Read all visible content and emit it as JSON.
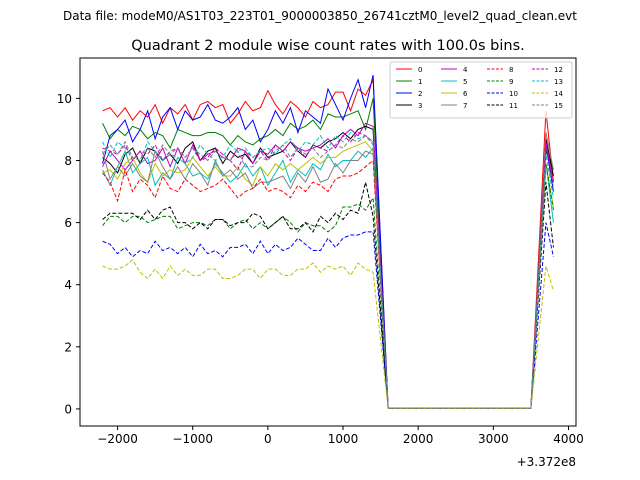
{
  "chart_data": {
    "type": "line",
    "suptitle": "Data file: modeM0/AS1T03_223T01_9000003850_26741cztM0_level2_quad_clean.evt",
    "title": "Quadrant 2 module wise count rates with 100.0s bins.",
    "xlabel": "",
    "ylabel": "",
    "x_offset_label": "+3.372e8",
    "xlim": [
      -2500,
      4100
    ],
    "ylim": [
      -0.55,
      11.3
    ],
    "xticks": [
      -2000,
      -1000,
      0,
      1000,
      2000,
      3000,
      4000
    ],
    "xtick_labels": [
      "−2000",
      "−1000",
      "0",
      "1000",
      "2000",
      "3000",
      "4000"
    ],
    "yticks": [
      0,
      2,
      4,
      6,
      8,
      10
    ],
    "ytick_labels": [
      "0",
      "2",
      "4",
      "6",
      "8",
      "10"
    ],
    "legend_position": "top-right",
    "legend_columns": 4,
    "grid": false,
    "x": [
      -2200,
      -2100,
      -2000,
      -1900,
      -1800,
      -1700,
      -1600,
      -1500,
      -1400,
      -1300,
      -1200,
      -1100,
      -1000,
      -900,
      -800,
      -700,
      -600,
      -500,
      -400,
      -300,
      -200,
      -100,
      0,
      100,
      200,
      300,
      400,
      500,
      600,
      700,
      800,
      900,
      1000,
      1100,
      1200,
      1300,
      1400,
      1600,
      3500,
      3700,
      3800
    ],
    "series": [
      {
        "name": "0",
        "color": "#ff0000",
        "dash": "solid",
        "values": [
          9.6,
          9.7,
          9.4,
          9.7,
          9.3,
          9.6,
          9.4,
          9.8,
          9.2,
          9.7,
          9.5,
          9.8,
          9.3,
          9.8,
          9.9,
          9.7,
          9.8,
          9.2,
          9.5,
          9.9,
          9.6,
          9.7,
          10.25,
          9.8,
          9.5,
          9.9,
          9.7,
          9.4,
          9.9,
          9.7,
          9.8,
          10.2,
          10.2,
          9.6,
          10.3,
          10.1,
          10.6,
          0.02,
          0.02,
          9.6,
          7.3
        ]
      },
      {
        "name": "1",
        "color": "#008000",
        "dash": "solid",
        "values": [
          9.2,
          8.7,
          9.0,
          8.8,
          9.1,
          9.0,
          8.7,
          8.9,
          8.8,
          8.4,
          9.0,
          8.9,
          8.8,
          8.8,
          8.9,
          8.9,
          8.8,
          8.5,
          8.8,
          8.6,
          8.5,
          8.7,
          8.8,
          9.0,
          8.8,
          9.2,
          9.0,
          9.1,
          9.3,
          9.0,
          9.5,
          9.4,
          9.4,
          9.5,
          9.6,
          9.0,
          10.0,
          0.02,
          0.02,
          8.3,
          7.7
        ]
      },
      {
        "name": "2",
        "color": "#0000ff",
        "dash": "solid",
        "values": [
          7.9,
          8.8,
          9.0,
          9.3,
          8.6,
          9.0,
          9.6,
          8.7,
          9.4,
          9.7,
          9.0,
          9.6,
          9.3,
          9.4,
          9.8,
          9.3,
          9.2,
          9.4,
          9.7,
          9.0,
          9.3,
          8.6,
          9.0,
          9.6,
          9.2,
          9.7,
          8.9,
          9.6,
          9.4,
          9.2,
          10.3,
          9.8,
          9.3,
          10.0,
          10.6,
          9.7,
          10.75,
          0.02,
          0.02,
          8.5,
          7.0
        ]
      },
      {
        "name": "3",
        "color": "#000000",
        "dash": "solid",
        "values": [
          8.1,
          7.9,
          7.6,
          8.2,
          8.4,
          7.9,
          8.4,
          8.3,
          8.0,
          8.2,
          7.9,
          8.4,
          8.6,
          8.0,
          8.3,
          8.4,
          7.9,
          8.3,
          8.1,
          8.2,
          7.9,
          8.4,
          8.1,
          8.2,
          8.3,
          8.6,
          8.3,
          8.1,
          8.5,
          8.4,
          8.6,
          8.7,
          8.9,
          8.7,
          9.0,
          9.1,
          9.0,
          0.02,
          0.02,
          8.7,
          7.5
        ]
      },
      {
        "name": "4",
        "color": "#bf00bf",
        "dash": "solid",
        "values": [
          7.8,
          8.3,
          8.0,
          7.7,
          8.0,
          8.3,
          7.9,
          8.0,
          8.4,
          7.8,
          8.4,
          7.9,
          8.5,
          8.0,
          8.2,
          8.3,
          8.1,
          8.0,
          8.4,
          8.3,
          7.9,
          8.3,
          8.2,
          8.5,
          8.3,
          8.6,
          8.4,
          8.3,
          8.4,
          8.5,
          8.7,
          8.4,
          8.8,
          9.0,
          8.8,
          9.2,
          9.1,
          0.02,
          0.02,
          8.5,
          7.3
        ]
      },
      {
        "name": "5",
        "color": "#00bfbf",
        "dash": "solid",
        "values": [
          7.7,
          7.2,
          7.8,
          8.3,
          7.6,
          7.9,
          8.1,
          7.2,
          7.6,
          7.4,
          8.1,
          7.9,
          7.5,
          7.6,
          7.4,
          7.9,
          7.6,
          7.3,
          7.5,
          7.9,
          7.5,
          7.8,
          7.2,
          7.6,
          8.0,
          7.3,
          7.7,
          7.5,
          7.9,
          7.7,
          8.2,
          7.8,
          8.0,
          8.0,
          8.3,
          8.1,
          8.4,
          0.02,
          0.02,
          7.9,
          6.0
        ]
      },
      {
        "name": "6",
        "color": "#bfbf00",
        "dash": "solid",
        "values": [
          7.6,
          7.7,
          7.4,
          7.9,
          8.1,
          7.6,
          7.3,
          7.9,
          7.5,
          7.7,
          7.6,
          7.7,
          8.1,
          7.8,
          7.5,
          7.8,
          7.5,
          7.5,
          7.8,
          7.4,
          7.2,
          7.8,
          7.5,
          7.9,
          7.7,
          7.9,
          7.7,
          7.9,
          8.1,
          7.9,
          8.1,
          8.1,
          8.3,
          8.4,
          8.5,
          8.6,
          8.3,
          0.02,
          0.02,
          7.9,
          6.5
        ]
      },
      {
        "name": "7",
        "color": "#808080",
        "dash": "solid",
        "values": [
          8.3,
          7.4,
          7.8,
          7.5,
          7.9,
          7.5,
          7.3,
          8.3,
          7.8,
          7.4,
          7.8,
          7.4,
          7.9,
          7.6,
          7.2,
          8.0,
          7.5,
          7.7,
          7.4,
          7.6,
          7.1,
          7.3,
          7.3,
          7.4,
          7.5,
          7.1,
          7.6,
          7.3,
          7.8,
          7.3,
          7.4,
          7.9,
          7.6,
          8.0,
          8.0,
          8.3,
          8.2,
          0.02,
          0.02,
          8.9,
          7.7
        ]
      },
      {
        "name": "8",
        "color": "#ff0000",
        "dash": "dashed",
        "values": [
          7.6,
          7.3,
          6.7,
          7.7,
          7.0,
          7.4,
          7.2,
          6.8,
          7.5,
          7.1,
          7.0,
          7.4,
          7.2,
          7.0,
          7.1,
          7.2,
          7.4,
          7.1,
          6.8,
          7.0,
          7.1,
          7.4,
          7.0,
          7.1,
          7.0,
          6.8,
          7.2,
          7.0,
          7.3,
          7.2,
          7.0,
          7.4,
          7.5,
          7.5,
          7.6,
          7.8,
          8.0,
          0.02,
          0.02,
          8.6,
          7.3
        ]
      },
      {
        "name": "9",
        "color": "#008000",
        "dash": "dashed",
        "values": [
          5.9,
          6.2,
          6.2,
          6.0,
          6.2,
          6.2,
          6.0,
          6.1,
          6.2,
          6.2,
          5.8,
          5.9,
          6.0,
          6.0,
          5.9,
          6.1,
          6.1,
          5.8,
          6.0,
          6.1,
          5.8,
          6.0,
          5.8,
          6.0,
          6.2,
          6.0,
          5.7,
          6.0,
          5.9,
          5.9,
          5.7,
          5.9,
          6.5,
          6.5,
          6.6,
          6.4,
          6.8,
          0.02,
          0.02,
          7.9,
          6.4
        ]
      },
      {
        "name": "10",
        "color": "#0000ff",
        "dash": "dashed",
        "values": [
          5.4,
          5.3,
          5.0,
          5.2,
          4.9,
          5.1,
          5.0,
          5.4,
          5.1,
          5.2,
          5.0,
          5.2,
          4.9,
          5.3,
          5.0,
          5.1,
          4.9,
          5.2,
          5.2,
          5.3,
          5.0,
          5.4,
          5.0,
          5.3,
          5.1,
          5.2,
          5.5,
          5.3,
          5.1,
          5.1,
          5.5,
          5.2,
          5.5,
          5.6,
          5.6,
          5.7,
          5.7,
          0.02,
          0.02,
          6.0,
          4.9
        ]
      },
      {
        "name": "11",
        "color": "#000000",
        "dash": "dashed",
        "values": [
          6.1,
          6.3,
          6.3,
          6.3,
          6.3,
          6.1,
          6.4,
          6.1,
          6.4,
          6.5,
          6.0,
          6.0,
          5.8,
          6.0,
          5.8,
          6.1,
          6.1,
          5.9,
          6.0,
          6.0,
          6.3,
          6.2,
          5.8,
          6.0,
          6.2,
          5.8,
          5.8,
          6.0,
          5.7,
          6.2,
          6.0,
          6.3,
          6.1,
          6.4,
          6.3,
          7.3,
          6.2,
          0.02,
          0.02,
          7.3,
          5.2
        ]
      },
      {
        "name": "12",
        "color": "#bf00bf",
        "dash": "dashed",
        "values": [
          8.4,
          8.3,
          8.2,
          8.5,
          8.0,
          8.3,
          8.2,
          8.5,
          8.0,
          8.3,
          8.4,
          8.1,
          8.4,
          8.0,
          8.1,
          8.4,
          8.2,
          8.0,
          7.7,
          8.3,
          8.1,
          8.3,
          8.0,
          8.5,
          8.3,
          8.0,
          8.4,
          8.1,
          8.5,
          8.4,
          8.3,
          8.5,
          8.8,
          8.6,
          8.9,
          8.8,
          8.6,
          0.02,
          0.02,
          8.6,
          7.2
        ]
      },
      {
        "name": "13",
        "color": "#00bfbf",
        "dash": "dashed",
        "values": [
          8.6,
          8.1,
          8.6,
          8.4,
          8.1,
          8.0,
          8.6,
          8.3,
          8.0,
          8.2,
          8.1,
          7.9,
          8.1,
          8.5,
          8.2,
          8.0,
          8.1,
          8.5,
          8.3,
          8.4,
          8.1,
          8.3,
          8.4,
          8.2,
          8.5,
          8.7,
          8.3,
          8.6,
          8.5,
          8.8,
          8.4,
          8.8,
          8.6,
          8.9,
          8.7,
          8.8,
          8.5,
          0.02,
          0.02,
          8.2,
          6.8
        ]
      },
      {
        "name": "14",
        "color": "#bfbf00",
        "dash": "dashed",
        "values": [
          4.6,
          4.5,
          4.5,
          4.6,
          4.8,
          4.4,
          4.2,
          4.5,
          4.2,
          4.6,
          4.3,
          4.5,
          4.3,
          4.3,
          4.5,
          4.5,
          4.2,
          4.2,
          4.3,
          4.5,
          4.5,
          4.2,
          4.5,
          4.5,
          4.3,
          4.3,
          4.5,
          4.5,
          4.7,
          4.4,
          4.6,
          4.5,
          4.6,
          4.3,
          4.7,
          4.5,
          4.4,
          0.02,
          0.02,
          4.6,
          3.8
        ]
      },
      {
        "name": "15",
        "color": "#808080",
        "dash": "dashed",
        "values": [
          8.2,
          8.5,
          8.2,
          8.6,
          8.1,
          8.0,
          8.4,
          8.1,
          8.5,
          8.2,
          8.4,
          8.1,
          8.4,
          8.2,
          8.0,
          8.3,
          8.1,
          8.0,
          8.3,
          7.8,
          7.8,
          8.1,
          8.0,
          8.3,
          8.5,
          8.1,
          8.4,
          8.2,
          8.4,
          8.1,
          8.3,
          8.5,
          8.4,
          8.7,
          8.6,
          8.8,
          8.6,
          0.02,
          0.02,
          7.8,
          7.4
        ]
      }
    ]
  }
}
